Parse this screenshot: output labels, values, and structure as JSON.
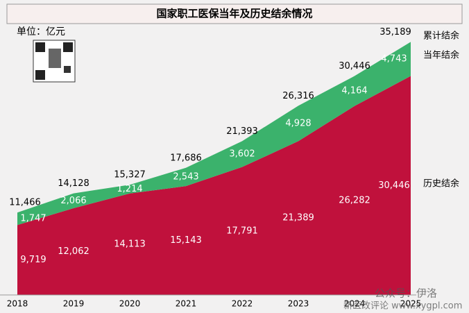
{
  "chart_data": {
    "type": "stacked-area",
    "title": "国家职工医保当年及历史结余情况",
    "unit": "单位：亿元",
    "categories": [
      "2018",
      "2019",
      "2020",
      "2021",
      "2022",
      "2023",
      "2024",
      "2025"
    ],
    "series": [
      {
        "name": "历史结余",
        "color": "#c0113c",
        "values": [
          9719,
          12062,
          14113,
          15143,
          17791,
          21389,
          26282,
          30446
        ],
        "value_labels": [
          "9,719",
          "12,062",
          "14,113",
          "15,143",
          "17,791",
          "21,389",
          "26,282",
          "30,446"
        ]
      },
      {
        "name": "当年结余",
        "color": "#3bb26c",
        "values": [
          1747,
          2066,
          1214,
          2543,
          3602,
          4928,
          4164,
          4743
        ],
        "value_labels": [
          "1,747",
          "2,066",
          "1,214",
          "2,543",
          "3,602",
          "4,928",
          "4,164",
          "4,743"
        ]
      }
    ],
    "totals": {
      "name": "累计结余",
      "values": [
        11466,
        14128,
        15327,
        17686,
        21393,
        26316,
        30446,
        35189
      ],
      "value_labels": [
        "11,466",
        "14,128",
        "15,327",
        "17,686",
        "21,393",
        "26,316",
        "30,446",
        "35,189"
      ]
    },
    "ylim": [
      0,
      36000
    ],
    "watermark": [
      "公众号：伊洛",
      "新医改评论 www.xygpl.com"
    ]
  }
}
